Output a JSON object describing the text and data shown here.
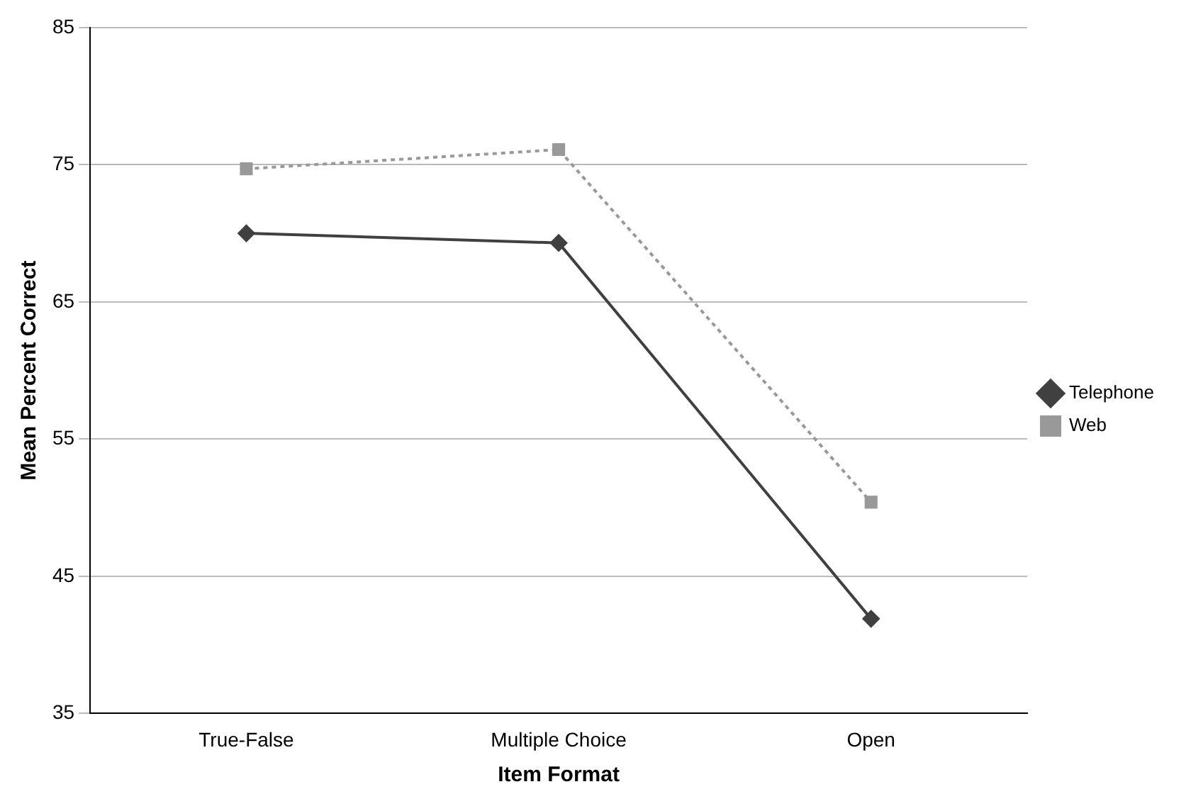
{
  "chart_data": {
    "type": "line",
    "xlabel": "Item Format",
    "ylabel": "Mean Percent Correct",
    "categories": [
      "True-False",
      "Multiple Choice",
      "Open"
    ],
    "series": [
      {
        "name": "Telephone",
        "color": "#404040",
        "values": [
          70.0,
          69.3,
          41.9
        ],
        "marker": "diamond",
        "line_style": "solid"
      },
      {
        "name": "Web",
        "color": "#999999",
        "values": [
          74.7,
          76.1,
          50.4
        ],
        "marker": "square",
        "line_style": "dotted"
      }
    ],
    "ylim": [
      35,
      85
    ],
    "yticks": [
      35,
      45,
      55,
      65,
      75,
      85
    ],
    "grid": "y",
    "legend": "right"
  }
}
